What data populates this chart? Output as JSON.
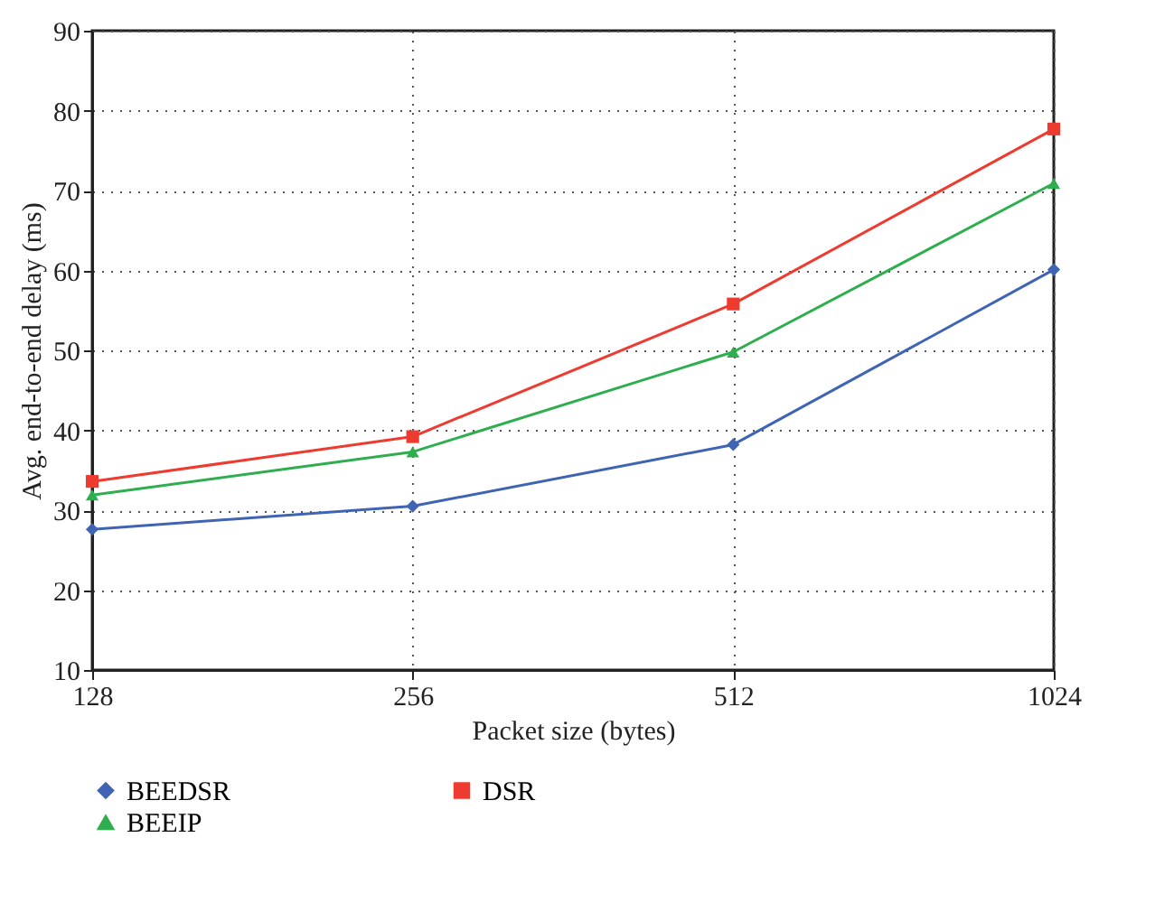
{
  "chart_data": {
    "type": "line",
    "xlabel": "Packet size (bytes)",
    "ylabel": "Avg. end-to-end delay (ms)",
    "categories": [
      "128",
      "256",
      "512",
      "1024"
    ],
    "series": [
      {
        "name": "BEEDSR",
        "color": "#4064b4",
        "marker": "diamond",
        "values": [
          27.6,
          30.5,
          38.2,
          60.1
        ]
      },
      {
        "name": "DSR",
        "color": "#ee3b30",
        "marker": "square",
        "values": [
          33.6,
          39.2,
          55.8,
          77.7
        ]
      },
      {
        "name": "BEEIP",
        "color": "#2fae50",
        "marker": "triangle",
        "values": [
          31.9,
          37.3,
          49.8,
          70.9
        ]
      }
    ],
    "ylim": [
      10,
      90
    ],
    "yticks": [
      10,
      20,
      30,
      40,
      50,
      60,
      70,
      80,
      90
    ],
    "grid": true,
    "legend": "bottom",
    "line_style": "solid"
  }
}
